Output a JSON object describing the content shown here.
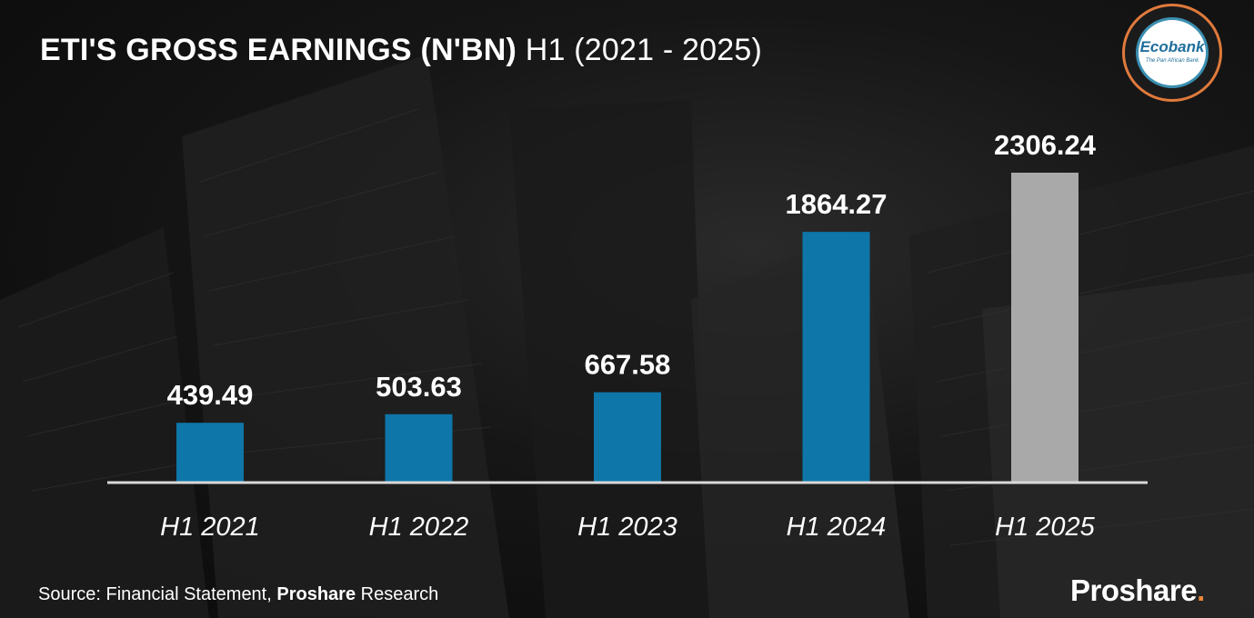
{
  "header": {
    "title_bold": "ETI'S GROSS EARNINGS (N'BN)",
    "title_light": "H1 (2021 - 2025)"
  },
  "logo": {
    "name": "Ecobank",
    "tagline": "The Pan African Bank"
  },
  "footer": {
    "source_prefix": "Source: Financial Statement,",
    "source_bold": "Proshare",
    "source_suffix": "Research",
    "brand": "Proshare",
    "brand_dot": "."
  },
  "colors": {
    "bar_primary": "#0e76a8",
    "bar_highlight": "#a9a9a9",
    "baseline": "#d9d9d9",
    "text": "#ffffff",
    "logo_ring": "#e07a3c",
    "brand_accent": "#e8863a"
  },
  "chart_data": {
    "type": "bar",
    "categories": [
      "H1 2021",
      "H1 2022",
      "H1 2023",
      "H1 2024",
      "H1 2025"
    ],
    "values": [
      439.49,
      503.63,
      667.58,
      1864.27,
      2306.24
    ],
    "data_labels": [
      "439.49",
      "503.63",
      "667.58",
      "1864.27",
      "2306.24"
    ],
    "highlight_index": 4,
    "title": "ETI'S GROSS EARNINGS (N'BN) H1 (2021 - 2025)",
    "xlabel": "",
    "ylabel": "",
    "ylim": [
      0,
      2306.24
    ],
    "grid": false,
    "legend": "none"
  }
}
